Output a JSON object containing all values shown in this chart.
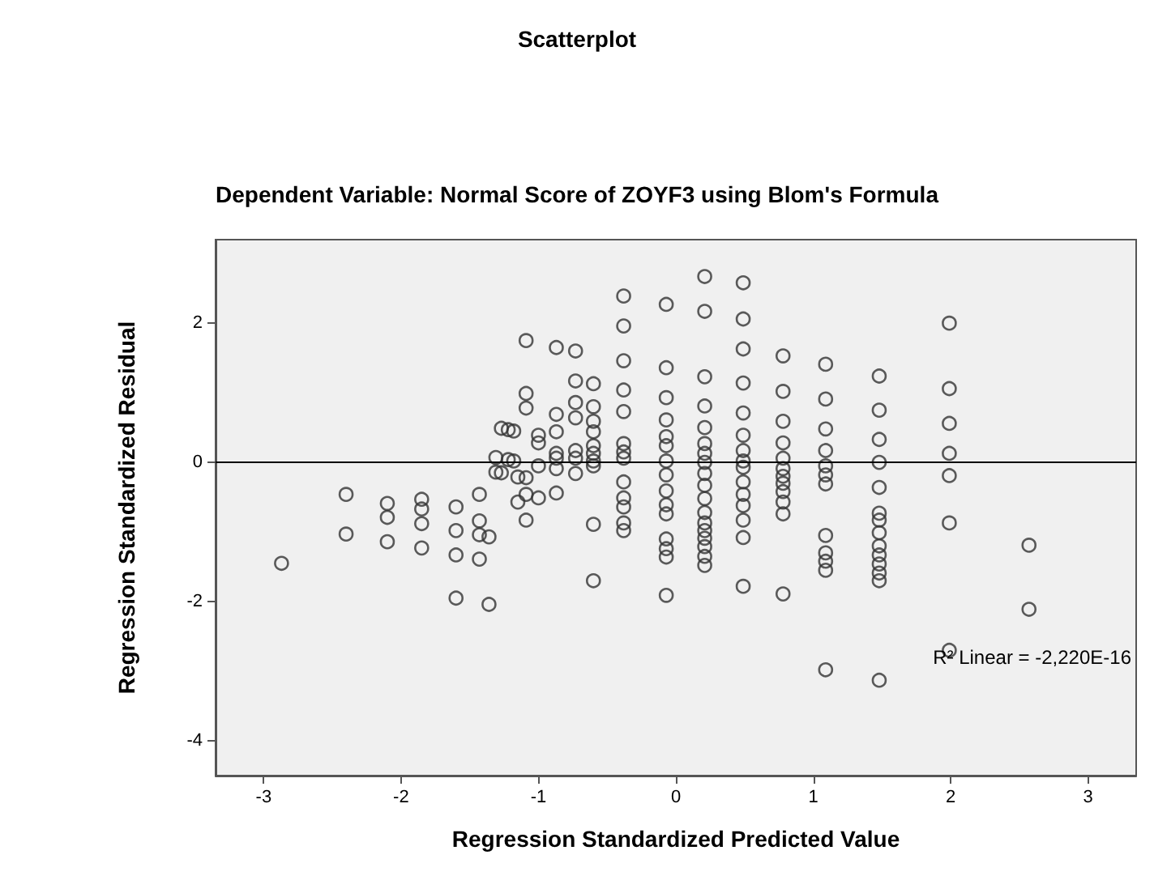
{
  "chart_data": {
    "type": "scatter",
    "title": "Scatterplot",
    "subtitle": "Dependent Variable: Normal Score of ZOYF3 using Blom's Formula",
    "xlabel": "Regression Standardized Predicted Value",
    "ylabel": "Regression Standardized Residual",
    "annotations": [
      "R² Linear = -2,220E-16"
    ],
    "xlim": [
      -3.35,
      3.35
    ],
    "ylim": [
      -4.5,
      3.2
    ],
    "xticks": [
      -3,
      -2,
      -1,
      0,
      1,
      2,
      3
    ],
    "yticks": [
      -4,
      -2,
      0,
      2
    ],
    "grid": false,
    "marker": "circle",
    "ref_lines": [
      {
        "axis": "y",
        "value": 0,
        "color": "#000000"
      }
    ],
    "series": [
      {
        "color": "#333333",
        "x": [
          -2.87,
          -2.4,
          -2.4,
          -2.1,
          -2.1,
          -2.1,
          -1.85,
          -1.85,
          -1.85,
          -1.85,
          -1.6,
          -1.6,
          -1.6,
          -1.6,
          -1.43,
          -1.43,
          -1.43,
          -1.43,
          -1.36,
          -1.36,
          -1.27,
          -1.22,
          -1.18,
          -1.31,
          -1.22,
          -1.18,
          -1.31,
          -1.27,
          -1.15,
          -1.15,
          -1.09,
          -1.09,
          -1.09,
          -1.09,
          -1.09,
          -1.09,
          -1.0,
          -1.0,
          -1.0,
          -1.0,
          -0.87,
          -0.87,
          -0.87,
          -0.87,
          -0.87,
          -0.87,
          -0.87,
          -0.73,
          -0.73,
          -0.73,
          -0.73,
          -0.73,
          -0.73,
          -0.73,
          -0.6,
          -0.6,
          -0.6,
          -0.6,
          -0.6,
          -0.6,
          -0.6,
          -0.6,
          -0.6,
          -0.6,
          -0.38,
          -0.38,
          -0.38,
          -0.38,
          -0.38,
          -0.38,
          -0.38,
          -0.38,
          -0.38,
          -0.38,
          -0.38,
          -0.38,
          -0.38,
          -0.07,
          -0.07,
          -0.07,
          -0.07,
          -0.07,
          -0.07,
          -0.07,
          -0.07,
          -0.07,
          -0.07,
          -0.07,
          -0.07,
          -0.07,
          -0.07,
          -0.07,
          0.21,
          0.21,
          0.21,
          0.21,
          0.21,
          0.21,
          0.21,
          0.21,
          0.21,
          0.21,
          0.21,
          0.21,
          0.21,
          0.21,
          0.21,
          0.21,
          0.21,
          0.21,
          0.49,
          0.49,
          0.49,
          0.49,
          0.49,
          0.49,
          0.49,
          0.49,
          0.49,
          0.49,
          0.49,
          0.49,
          0.49,
          0.49,
          0.49,
          0.78,
          0.78,
          0.78,
          0.78,
          0.78,
          0.78,
          0.78,
          0.78,
          0.78,
          0.78,
          0.78,
          0.78,
          1.09,
          1.09,
          1.09,
          1.09,
          1.09,
          1.09,
          1.09,
          1.09,
          1.09,
          1.09,
          1.09,
          1.09,
          1.48,
          1.48,
          1.48,
          1.48,
          1.48,
          1.48,
          1.48,
          1.48,
          1.48,
          1.48,
          1.48,
          1.48,
          1.48,
          1.48,
          1.99,
          1.99,
          1.99,
          1.99,
          1.99,
          1.99,
          1.99,
          2.57,
          2.57
        ],
        "values": [
          -1.45,
          -0.46,
          -1.03,
          -0.59,
          -0.79,
          -1.14,
          -0.53,
          -0.67,
          -0.88,
          -1.23,
          -0.64,
          -0.98,
          -1.33,
          -1.95,
          -0.46,
          -0.84,
          -1.04,
          -1.39,
          -1.07,
          -2.04,
          0.49,
          0.47,
          0.45,
          0.07,
          0.04,
          0.02,
          -0.14,
          -0.15,
          -0.21,
          -0.57,
          1.75,
          0.99,
          0.78,
          -0.22,
          -0.46,
          -0.83,
          0.39,
          0.28,
          -0.05,
          -0.51,
          1.65,
          0.69,
          0.44,
          0.13,
          0.06,
          -0.09,
          -0.44,
          1.6,
          1.17,
          0.86,
          0.64,
          0.17,
          0.06,
          -0.16,
          1.13,
          0.8,
          0.59,
          0.44,
          0.24,
          0.13,
          0.02,
          -0.05,
          -0.89,
          -1.7,
          2.39,
          1.96,
          1.46,
          1.04,
          0.73,
          0.27,
          0.15,
          0.06,
          -0.28,
          -0.51,
          -0.64,
          -0.87,
          -0.98,
          2.27,
          1.36,
          0.93,
          0.61,
          0.37,
          0.24,
          0.02,
          -0.18,
          -0.41,
          -0.61,
          -0.74,
          -1.1,
          -1.24,
          -1.36,
          -1.91,
          2.67,
          2.17,
          1.23,
          0.81,
          0.5,
          0.27,
          0.13,
          0,
          -0.16,
          -0.33,
          -0.52,
          -0.72,
          -0.87,
          -0.98,
          -1.09,
          -1.21,
          -1.35,
          -1.48,
          2.58,
          2.06,
          1.63,
          1.14,
          0.71,
          0.39,
          0.17,
          0.02,
          -0.07,
          -0.28,
          -0.46,
          -0.62,
          -0.83,
          -1.08,
          -1.78,
          1.53,
          1.02,
          0.59,
          0.28,
          0.06,
          -0.09,
          -0.2,
          -0.3,
          -0.42,
          -0.57,
          -0.74,
          -1.89,
          1.41,
          0.91,
          0.48,
          0.17,
          -0.05,
          -0.18,
          -0.31,
          -1.05,
          -1.3,
          -1.42,
          -1.55,
          -2.98,
          1.24,
          0.75,
          0.33,
          0,
          -0.36,
          -0.73,
          -0.83,
          -1.01,
          -1.2,
          -1.33,
          -1.46,
          -1.59,
          -1.7,
          -3.13,
          2.0,
          1.06,
          0.56,
          0.13,
          -0.19,
          -0.87,
          -2.7,
          -1.19,
          -2.11
        ]
      }
    ]
  }
}
